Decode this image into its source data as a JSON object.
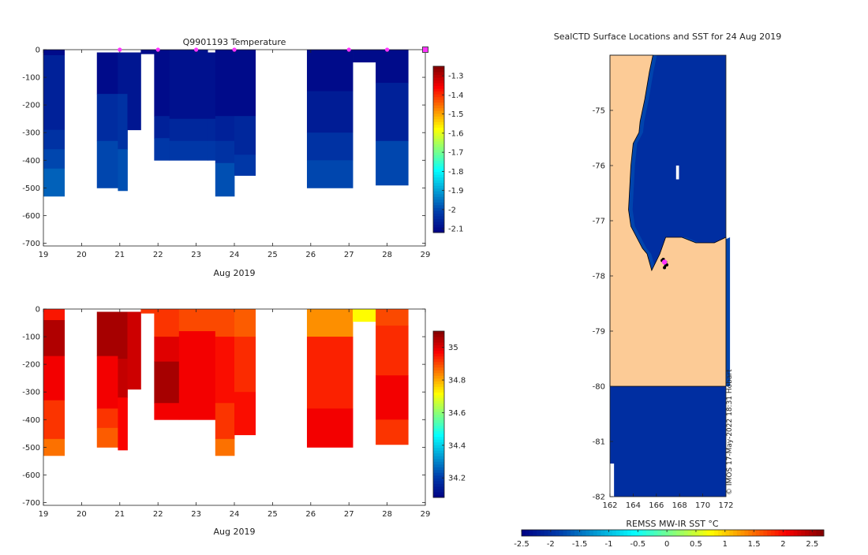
{
  "colors": {
    "land": "#fccb96",
    "ocean_dark": "#0a32b4",
    "missing": "#ffffff",
    "track_marker": "#ff33ff",
    "outline": "#000000",
    "axis": "#222222"
  },
  "credit": "© IMOS 17-May-2022 18:31 Hobart",
  "chart_data": [
    {
      "id": "temperature",
      "type": "heatmap",
      "title": "Q9901193  Temperature",
      "xlabel": "Aug 2019",
      "ylabel": "",
      "xlim": [
        19,
        29
      ],
      "ylim": [
        -710,
        0
      ],
      "xticks": [
        19,
        20,
        21,
        22,
        23,
        24,
        25,
        26,
        27,
        28,
        29
      ],
      "yticks": [
        0,
        -100,
        -200,
        -300,
        -400,
        -500,
        -600,
        -700
      ],
      "colorbar": {
        "range": [
          -2.12,
          -1.25
        ],
        "ticks": [
          "-1.3",
          "-1.4",
          "-1.5",
          "-1.6",
          "-1.7",
          "-1.8",
          "-1.9",
          "-2",
          "-2.1"
        ],
        "tick_values": [
          -1.3,
          -1.4,
          -1.5,
          -1.6,
          -1.7,
          -1.8,
          -1.9,
          -2.0,
          -2.1
        ]
      },
      "profile_markers": [
        21,
        22,
        23,
        24,
        27,
        28,
        29
      ],
      "profiles": [
        {
          "x0": 19.0,
          "x1": 19.55,
          "layers": [
            [
              0,
              -20,
              -2.1
            ],
            [
              -20,
              -290,
              -2.06
            ],
            [
              -290,
              -360,
              -2.03
            ],
            [
              -360,
              -430,
              -2.0
            ],
            [
              -430,
              -530,
              -1.97
            ]
          ]
        },
        {
          "x0": 20.4,
          "x1": 20.95,
          "layers": [
            [
              -10,
              -160,
              -2.1
            ],
            [
              -160,
              -330,
              -2.04
            ],
            [
              -330,
              -500,
              -2.0
            ]
          ]
        },
        {
          "x0": 20.95,
          "x1": 21.2,
          "layers": [
            [
              -10,
              -160,
              -2.08
            ],
            [
              -160,
              -360,
              -2.03
            ],
            [
              -360,
              -510,
              -1.99
            ]
          ]
        },
        {
          "x0": 21.2,
          "x1": 21.55,
          "layers": [
            [
              -10,
              -290,
              -2.08
            ]
          ]
        },
        {
          "x0": 21.55,
          "x1": 21.9,
          "layers": [
            [
              0,
              -15,
              -2.1
            ]
          ]
        },
        {
          "x0": 21.9,
          "x1": 22.3,
          "layers": [
            [
              0,
              -240,
              -2.1
            ],
            [
              -240,
              -320,
              -2.06
            ],
            [
              -320,
              -400,
              -2.02
            ]
          ]
        },
        {
          "x0": 22.3,
          "x1": 23.3,
          "layers": [
            [
              0,
              -250,
              -2.09
            ],
            [
              -250,
              -330,
              -2.05
            ],
            [
              -330,
              -400,
              -2.02
            ]
          ]
        },
        {
          "x0": 23.3,
          "x1": 23.5,
          "layers": [
            [
              -10,
              -250,
              -2.09
            ],
            [
              -250,
              -330,
              -2.05
            ],
            [
              -330,
              -400,
              -2.02
            ]
          ]
        },
        {
          "x0": 23.5,
          "x1": 24.0,
          "layers": [
            [
              0,
              -240,
              -2.1
            ],
            [
              -240,
              -330,
              -2.06
            ],
            [
              -330,
              -410,
              -2.03
            ],
            [
              -410,
              -530,
              -1.99
            ]
          ]
        },
        {
          "x0": 24.0,
          "x1": 24.55,
          "layers": [
            [
              0,
              -240,
              -2.1
            ],
            [
              -240,
              -380,
              -2.05
            ],
            [
              -380,
              -455,
              -2.02
            ]
          ]
        },
        {
          "x0": 25.9,
          "x1": 27.1,
          "layers": [
            [
              0,
              -150,
              -2.1
            ],
            [
              -150,
              -300,
              -2.07
            ],
            [
              -300,
              -400,
              -2.03
            ],
            [
              -400,
              -500,
              -2.0
            ]
          ]
        },
        {
          "x0": 27.1,
          "x1": 27.7,
          "layers": [
            [
              0,
              -45,
              -2.1
            ]
          ]
        },
        {
          "x0": 27.7,
          "x1": 28.55,
          "layers": [
            [
              0,
              -120,
              -2.1
            ],
            [
              -120,
              -330,
              -2.06
            ],
            [
              -330,
              -490,
              -2.0
            ]
          ]
        }
      ]
    },
    {
      "id": "salinity",
      "type": "heatmap",
      "title": "",
      "xlabel": "Aug 2019",
      "ylabel": "",
      "xlim": [
        19,
        29
      ],
      "ylim": [
        -710,
        0
      ],
      "xticks": [
        19,
        20,
        21,
        22,
        23,
        24,
        25,
        26,
        27,
        28,
        29
      ],
      "yticks": [
        0,
        -100,
        -200,
        -300,
        -400,
        -500,
        -600,
        -700
      ],
      "colorbar": {
        "range": [
          34.08,
          35.1
        ],
        "ticks": [
          "35",
          "34.8",
          "34.6",
          "34.4",
          "34.2"
        ],
        "tick_values": [
          35.0,
          34.8,
          34.6,
          34.4,
          34.2
        ]
      },
      "profiles": [
        {
          "x0": 19.0,
          "x1": 19.55,
          "layers": [
            [
              0,
              -40,
              34.95
            ],
            [
              -40,
              -170,
              35.05
            ],
            [
              -170,
              -330,
              34.98
            ],
            [
              -330,
              -470,
              34.92
            ],
            [
              -470,
              -530,
              34.86
            ]
          ]
        },
        {
          "x0": 20.4,
          "x1": 20.95,
          "layers": [
            [
              -10,
              -170,
              35.06
            ],
            [
              -170,
              -360,
              34.98
            ],
            [
              -360,
              -430,
              34.92
            ],
            [
              -430,
              -500,
              34.88
            ]
          ]
        },
        {
          "x0": 20.95,
          "x1": 21.2,
          "layers": [
            [
              -10,
              -180,
              35.06
            ],
            [
              -180,
              -320,
              35.03
            ],
            [
              -320,
              -510,
              34.97
            ]
          ]
        },
        {
          "x0": 21.2,
          "x1": 21.55,
          "layers": [
            [
              -10,
              -290,
              35.02
            ]
          ]
        },
        {
          "x0": 21.55,
          "x1": 21.9,
          "layers": [
            [
              0,
              -15,
              34.92
            ]
          ]
        },
        {
          "x0": 21.9,
          "x1": 22.55,
          "layers": [
            [
              0,
              -100,
              34.92
            ],
            [
              -100,
              -190,
              35.0
            ],
            [
              -190,
              -340,
              35.06
            ],
            [
              -340,
              -400,
              34.98
            ]
          ]
        },
        {
          "x0": 22.55,
          "x1": 23.5,
          "layers": [
            [
              0,
              -80,
              34.9
            ],
            [
              -80,
              -400,
              34.98
            ]
          ]
        },
        {
          "x0": 23.5,
          "x1": 24.0,
          "layers": [
            [
              0,
              -100,
              34.9
            ],
            [
              -100,
              -340,
              34.96
            ],
            [
              -340,
              -470,
              34.92
            ],
            [
              -470,
              -530,
              34.86
            ]
          ]
        },
        {
          "x0": 24.0,
          "x1": 24.55,
          "layers": [
            [
              0,
              -100,
              34.88
            ],
            [
              -100,
              -300,
              34.93
            ],
            [
              -300,
              -455,
              34.96
            ]
          ]
        },
        {
          "x0": 25.9,
          "x1": 27.1,
          "layers": [
            [
              0,
              -100,
              34.83
            ],
            [
              -100,
              -360,
              34.94
            ],
            [
              -360,
              -500,
              34.98
            ]
          ]
        },
        {
          "x0": 27.1,
          "x1": 27.7,
          "layers": [
            [
              0,
              -45,
              34.72
            ]
          ]
        },
        {
          "x0": 27.7,
          "x1": 28.55,
          "layers": [
            [
              0,
              -60,
              34.9
            ],
            [
              -60,
              -240,
              34.93
            ],
            [
              -240,
              -400,
              34.98
            ],
            [
              -400,
              -490,
              34.92
            ]
          ]
        }
      ]
    },
    {
      "id": "sst_map",
      "type": "heatmap",
      "title": "SealCTD Surface Locations and SST for 24 Aug 2019",
      "xlabel": "",
      "ylabel": "",
      "xlim": [
        162,
        172
      ],
      "ylim": [
        -82,
        -74
      ],
      "xticks": [
        162,
        164,
        166,
        168,
        170,
        172
      ],
      "yticks": [
        -75,
        -76,
        -77,
        -78,
        -79,
        -80,
        -81,
        -82
      ],
      "colorbar": {
        "label": "REMSS MW-IR SST °C",
        "range": [
          -2.5,
          2.7
        ],
        "ticks": [
          "-2.5",
          "-2",
          "-1.5",
          "-1",
          "-0.5",
          "0",
          "0.5",
          "1",
          "1.5",
          "2",
          "2.5"
        ],
        "tick_values": [
          -2.5,
          -2.0,
          -1.5,
          -1.0,
          -0.5,
          0.0,
          0.5,
          1.0,
          1.5,
          2.0,
          2.5
        ]
      },
      "land_coast": [
        [
          162,
          -74
        ],
        [
          165.7,
          -74
        ],
        [
          165.4,
          -74.3
        ],
        [
          165.0,
          -74.8
        ],
        [
          164.6,
          -75.2
        ],
        [
          164.5,
          -75.4
        ],
        [
          164.0,
          -75.6
        ],
        [
          163.8,
          -76.0
        ],
        [
          163.7,
          -76.4
        ],
        [
          163.6,
          -76.8
        ],
        [
          163.8,
          -77.1
        ],
        [
          164.3,
          -77.3
        ],
        [
          164.8,
          -77.5
        ],
        [
          165.2,
          -77.6
        ],
        [
          165.6,
          -77.9
        ],
        [
          166.3,
          -77.6
        ],
        [
          166.8,
          -77.3
        ],
        [
          167.6,
          -77.3
        ],
        [
          168.2,
          -77.3
        ],
        [
          169.4,
          -77.4
        ],
        [
          170.2,
          -77.4
        ],
        [
          171.0,
          -77.4
        ],
        [
          172,
          -77.3
        ],
        [
          172,
          -80
        ],
        [
          162,
          -80
        ]
      ],
      "south_ocean": {
        "sst": -2.0,
        "lat_top": -80,
        "lat_bottom": -82
      },
      "north_ocean_sst": -2.0,
      "coastal_cool_band_sst": -1.8,
      "track": [
        [
          166.6,
          -77.7
        ],
        [
          166.8,
          -77.75
        ],
        [
          166.7,
          -77.85
        ],
        [
          166.9,
          -77.8
        ],
        [
          166.5,
          -77.72
        ]
      ],
      "surface_location": [
        166.7,
        -77.75
      ]
    }
  ]
}
